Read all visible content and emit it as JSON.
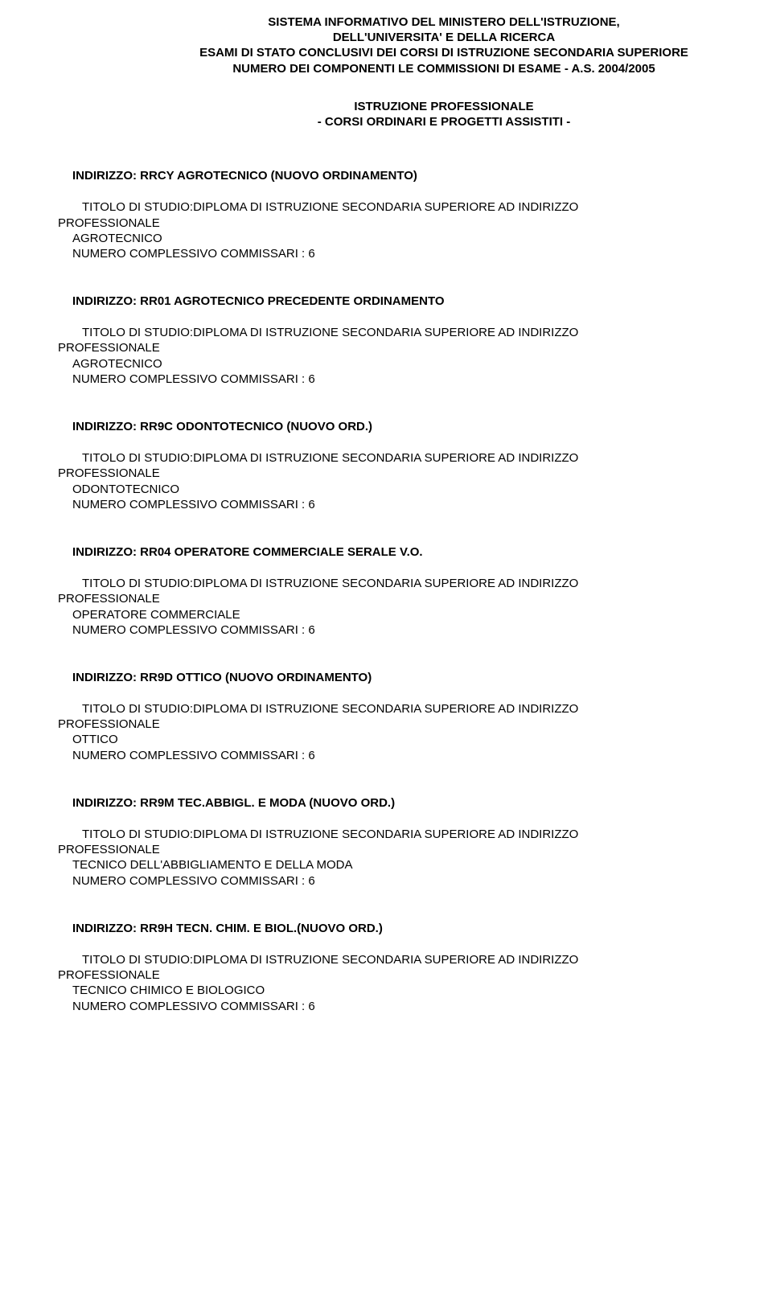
{
  "header": {
    "line1": "SISTEMA INFORMATIVO DEL MINISTERO DELL'ISTRUZIONE,",
    "line2": "DELL'UNIVERSITA' E DELLA RICERCA",
    "line3": "ESAMI DI STATO CONCLUSIVI DEI CORSI DI ISTRUZIONE SECONDARIA SUPERIORE",
    "line4": "NUMERO DEI COMPONENTI LE COMMISSIONI DI ESAME - A.S. 2004/2005"
  },
  "subheader": {
    "line1": "ISTRUZIONE PROFESSIONALE",
    "line2": "- CORSI ORDINARI E PROGETTI ASSISTITI -"
  },
  "common": {
    "titolo_prefix": "TITOLO DI STUDIO:DIPLOMA DI ISTRUZIONE SECONDARIA SUPERIORE AD INDIRIZZO",
    "professionale": "PROFESSIONALE",
    "numero_label": "NUMERO COMPLESSIVO COMMISSARI :",
    "numero_value": "6"
  },
  "entries": [
    {
      "code": "INDIRIZZO: RRCY  AGROTECNICO (NUOVO ORDINAMENTO)",
      "qual": "AGROTECNICO"
    },
    {
      "code": "INDIRIZZO: RR01  AGROTECNICO PRECEDENTE ORDINAMENTO",
      "qual": "AGROTECNICO"
    },
    {
      "code": "INDIRIZZO: RR9C  ODONTOTECNICO (NUOVO ORD.)",
      "qual": "ODONTOTECNICO"
    },
    {
      "code": "INDIRIZZO: RR04  OPERATORE COMMERCIALE SERALE V.O.",
      "qual": "OPERATORE COMMERCIALE"
    },
    {
      "code": "INDIRIZZO: RR9D  OTTICO (NUOVO ORDINAMENTO)",
      "qual": "OTTICO"
    },
    {
      "code": "INDIRIZZO: RR9M  TEC.ABBIGL. E MODA (NUOVO ORD.)",
      "qual": "TECNICO DELL'ABBIGLIAMENTO E DELLA MODA"
    },
    {
      "code": "INDIRIZZO: RR9H  TECN. CHIM. E BIOL.(NUOVO ORD.)",
      "qual": "TECNICO CHIMICO E BIOLOGICO"
    }
  ]
}
